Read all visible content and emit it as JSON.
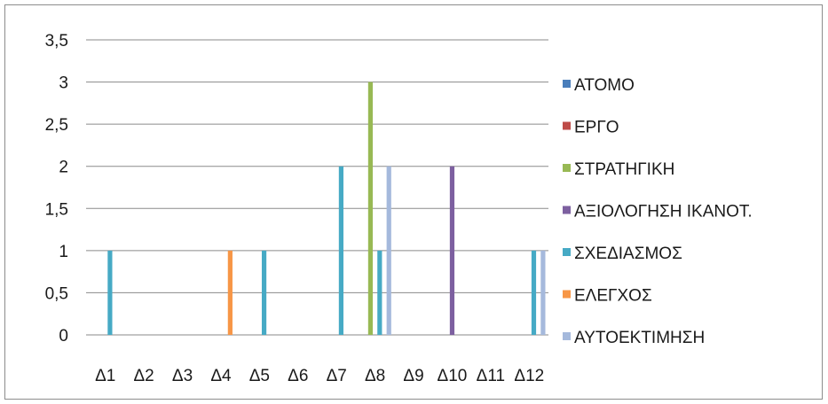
{
  "chart_data": {
    "type": "bar",
    "categories": [
      "Δ1",
      "Δ2",
      "Δ3",
      "Δ4",
      "Δ5",
      "Δ6",
      "Δ7",
      "Δ8",
      "Δ9",
      "Δ10",
      "Δ11",
      "Δ12"
    ],
    "y_ticks": [
      "0",
      "0,5",
      "1",
      "1,5",
      "2",
      "2,5",
      "3",
      "3,5"
    ],
    "ylim": [
      0,
      3.5
    ],
    "grid": true,
    "legend_position": "right",
    "title": "",
    "xlabel": "",
    "ylabel": "",
    "series": [
      {
        "name": "ΑΤΟΜΟ",
        "color": "#4a7ebb",
        "values": [
          0,
          0,
          0,
          0,
          0,
          0,
          0,
          0,
          0,
          0,
          0,
          0
        ]
      },
      {
        "name": "ΕΡΓΟ",
        "color": "#be4b48",
        "values": [
          0,
          0,
          0,
          0,
          0,
          0,
          0,
          0,
          0,
          0,
          0,
          0
        ]
      },
      {
        "name": "ΣΤΡΑΤΗΓΙΚΗ",
        "color": "#98b954",
        "values": [
          0,
          0,
          0,
          0,
          0,
          0,
          0,
          3,
          0,
          0,
          0,
          0
        ]
      },
      {
        "name": "ΑΞΙΟΛΟΓΗΣΗ ΙΚΑΝΟΤ.",
        "color": "#7d60a0",
        "values": [
          0,
          0,
          0,
          0,
          0,
          0,
          0,
          0,
          0,
          2,
          0,
          0
        ]
      },
      {
        "name": "ΣΧΕΔΙΑΣΜΟΣ",
        "color": "#46aac5",
        "values": [
          1,
          0,
          0,
          0,
          1,
          0,
          2,
          1,
          0,
          0,
          0,
          1
        ]
      },
      {
        "name": "ΕΛΕΓΧΟΣ",
        "color": "#f79646",
        "values": [
          0,
          0,
          0,
          1,
          0,
          0,
          0,
          0,
          0,
          0,
          0,
          0
        ]
      },
      {
        "name": "ΑΥΤΟΕΚΤΙΜΗΣΗ",
        "color": "#a5b9dc",
        "values": [
          0,
          0,
          0,
          0,
          0,
          0,
          0,
          2,
          0,
          0,
          0,
          1
        ]
      }
    ]
  }
}
